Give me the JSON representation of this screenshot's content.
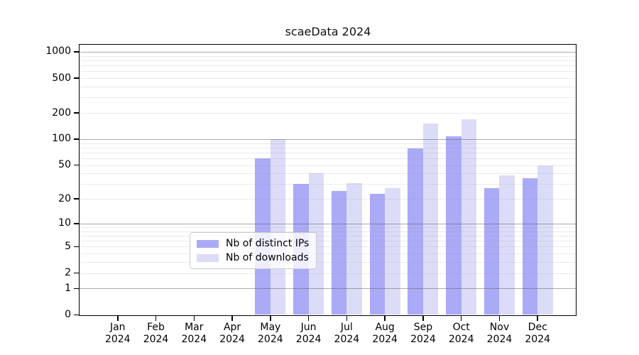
{
  "title": "scaeData 2024",
  "chart_data": {
    "type": "bar",
    "title": "scaeData 2024",
    "y_scale": "log1p",
    "ylim": [
      0,
      1080
    ],
    "grid": {
      "major": [
        1,
        10,
        100,
        1000
      ],
      "minor": [
        2,
        3,
        4,
        5,
        6,
        7,
        8,
        9,
        20,
        30,
        40,
        50,
        60,
        70,
        80,
        90,
        200,
        300,
        400,
        500,
        600,
        700,
        800,
        900
      ]
    },
    "y_ticks": [
      0,
      1,
      2,
      5,
      10,
      20,
      50,
      100,
      200,
      500,
      1000
    ],
    "months": [
      "Jan",
      "Feb",
      "Mar",
      "Apr",
      "May",
      "Jun",
      "Jul",
      "Aug",
      "Sep",
      "Oct",
      "Nov",
      "Dec"
    ],
    "year_label": "2024",
    "legend_position": "inside-bottom-center",
    "series": [
      {
        "name": "Nb of distinct IPs",
        "color": "#aaaaf7",
        "values": [
          0,
          0,
          0,
          0,
          60,
          30,
          25,
          23,
          78,
          108,
          27,
          35
        ]
      },
      {
        "name": "Nb of downloads",
        "color": "#dcdcf8",
        "values": [
          0,
          0,
          0,
          0,
          100,
          40,
          31,
          27,
          150,
          170,
          38,
          50
        ]
      }
    ]
  }
}
